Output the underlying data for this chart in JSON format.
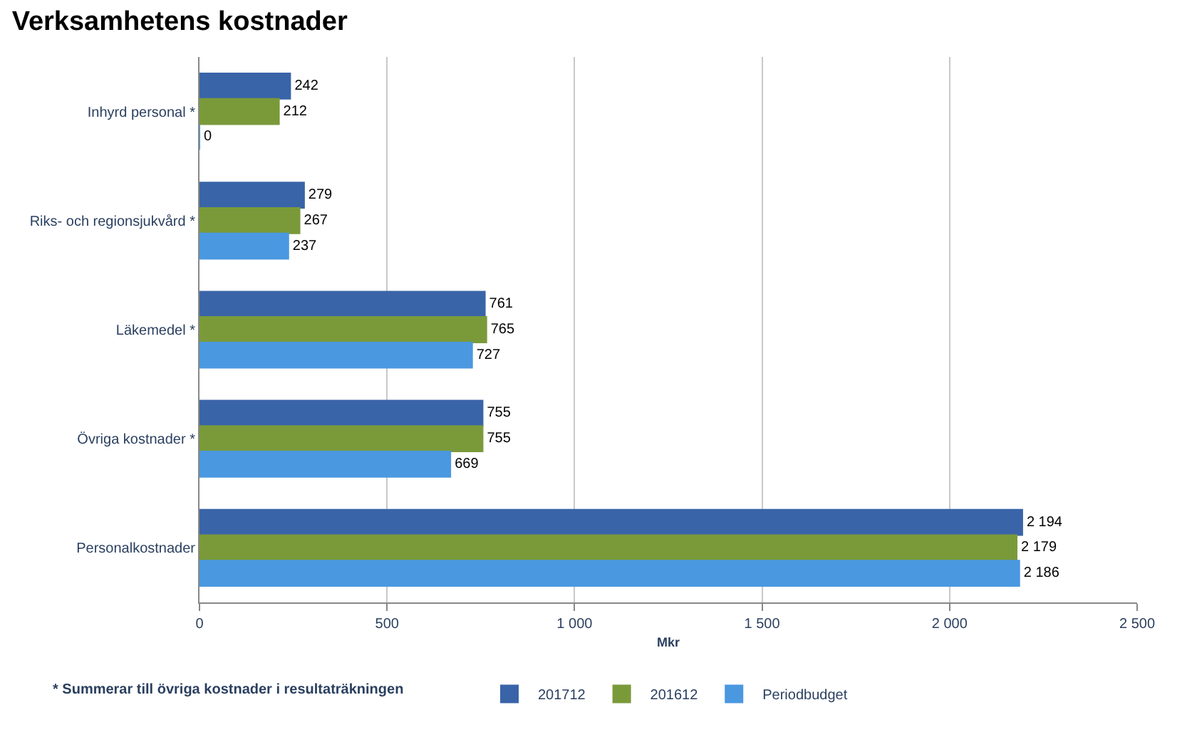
{
  "chart_data": {
    "type": "bar",
    "orientation": "horizontal",
    "title": "Verksamhetens kostnader",
    "xlabel": "Mkr",
    "categories": [
      "Inhyrd personal *",
      "Riks- och regionsjukvård *",
      "Läkemedel *",
      "Övriga kostnader *",
      "Personalkostnader"
    ],
    "series": [
      {
        "name": "201712",
        "color": "#3a64a8",
        "values": [
          242,
          279,
          761,
          755,
          2194
        ],
        "value_labels": [
          "242",
          "279",
          "761",
          "755",
          "2 194"
        ]
      },
      {
        "name": "201612",
        "color": "#7a9a3a",
        "values": [
          212,
          267,
          765,
          755,
          2179
        ],
        "value_labels": [
          "212",
          "267",
          "765",
          "755",
          "2 179"
        ]
      },
      {
        "name": "Periodbudget",
        "color": "#4a98e0",
        "values": [
          0,
          237,
          727,
          669,
          2186
        ],
        "value_labels": [
          "0",
          "237",
          "727",
          "669",
          "2 186"
        ]
      }
    ],
    "xlim": [
      0,
      2500
    ],
    "xticks": [
      0,
      500,
      {
        "value": 1000,
        "label": "1 000"
      },
      {
        "value": 1500,
        "label": "1 500"
      },
      {
        "value": 2000,
        "label": "2 000"
      },
      {
        "value": 2500,
        "label": "2 500"
      }
    ],
    "grid": "x",
    "legend": "bottom",
    "annotations": [
      "* Summerar till övriga kostnader i resultaträkningen"
    ]
  }
}
